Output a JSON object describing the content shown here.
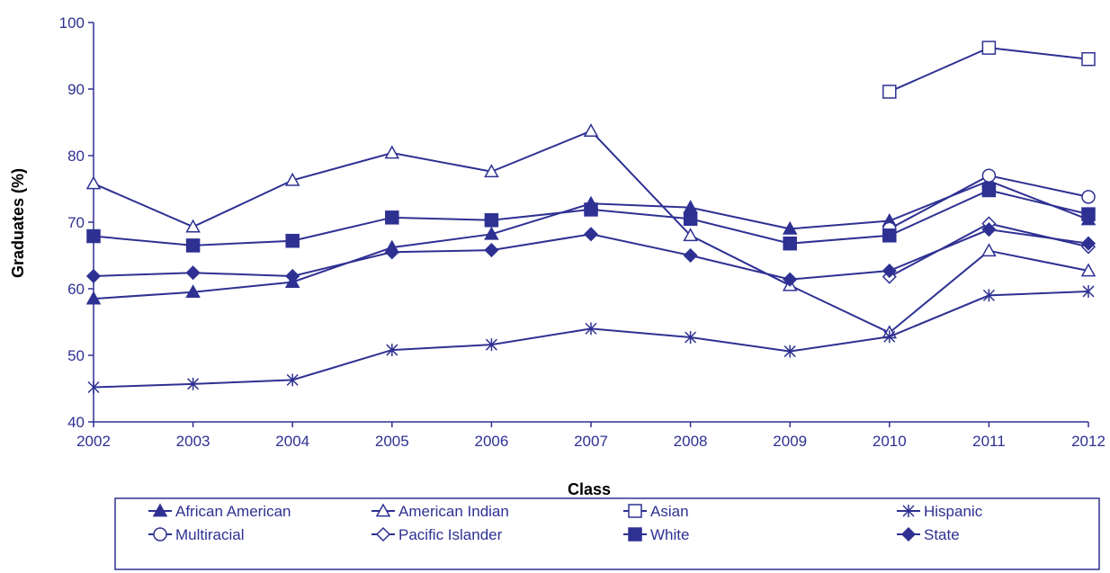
{
  "colors": {
    "primary": "#2e3192",
    "background": "#ffffff"
  },
  "chart_data": {
    "type": "line",
    "title": "",
    "xlabel": "Class",
    "ylabel": "Graduates (%)",
    "ylim": [
      40,
      100
    ],
    "yticks": [
      40,
      50,
      60,
      70,
      80,
      90,
      100
    ],
    "grid": false,
    "legend_position": "bottom",
    "categories": [
      "2002",
      "2003",
      "2004",
      "2005",
      "2006",
      "2007",
      "2008",
      "2009",
      "2010",
      "2011",
      "2012"
    ],
    "series": [
      {
        "name": "African American",
        "marker": "triangle-filled",
        "values": [
          58.5,
          59.5,
          61.0,
          66.2,
          68.2,
          72.8,
          72.2,
          69.0,
          70.2,
          76.2,
          70.4
        ]
      },
      {
        "name": "American Indian",
        "marker": "triangle-open",
        "values": [
          75.8,
          69.3,
          76.3,
          80.4,
          77.6,
          83.7,
          68.0,
          60.5,
          53.4,
          65.7,
          62.7
        ]
      },
      {
        "name": "Asian",
        "marker": "square-open",
        "values": [
          null,
          null,
          null,
          null,
          null,
          null,
          null,
          null,
          89.6,
          96.2,
          94.5
        ]
      },
      {
        "name": "Hispanic",
        "marker": "asterisk",
        "values": [
          45.2,
          45.7,
          46.3,
          50.8,
          51.6,
          54.0,
          52.7,
          50.6,
          52.8,
          59.0,
          59.6
        ]
      },
      {
        "name": "Multiracial",
        "marker": "circle-open",
        "values": [
          null,
          null,
          null,
          null,
          null,
          null,
          null,
          null,
          69.0,
          77.0,
          73.8
        ]
      },
      {
        "name": "Pacific Islander",
        "marker": "diamond-open",
        "values": [
          null,
          null,
          null,
          null,
          null,
          null,
          null,
          null,
          61.8,
          69.8,
          66.3
        ]
      },
      {
        "name": "White",
        "marker": "square-filled",
        "values": [
          67.9,
          66.5,
          67.2,
          70.7,
          70.3,
          71.9,
          70.5,
          66.8,
          68.0,
          74.8,
          71.2
        ]
      },
      {
        "name": "State",
        "marker": "diamond-filled",
        "values": [
          61.9,
          62.4,
          61.9,
          65.5,
          65.8,
          68.2,
          65.0,
          61.4,
          62.7,
          68.9,
          66.8
        ]
      }
    ]
  }
}
